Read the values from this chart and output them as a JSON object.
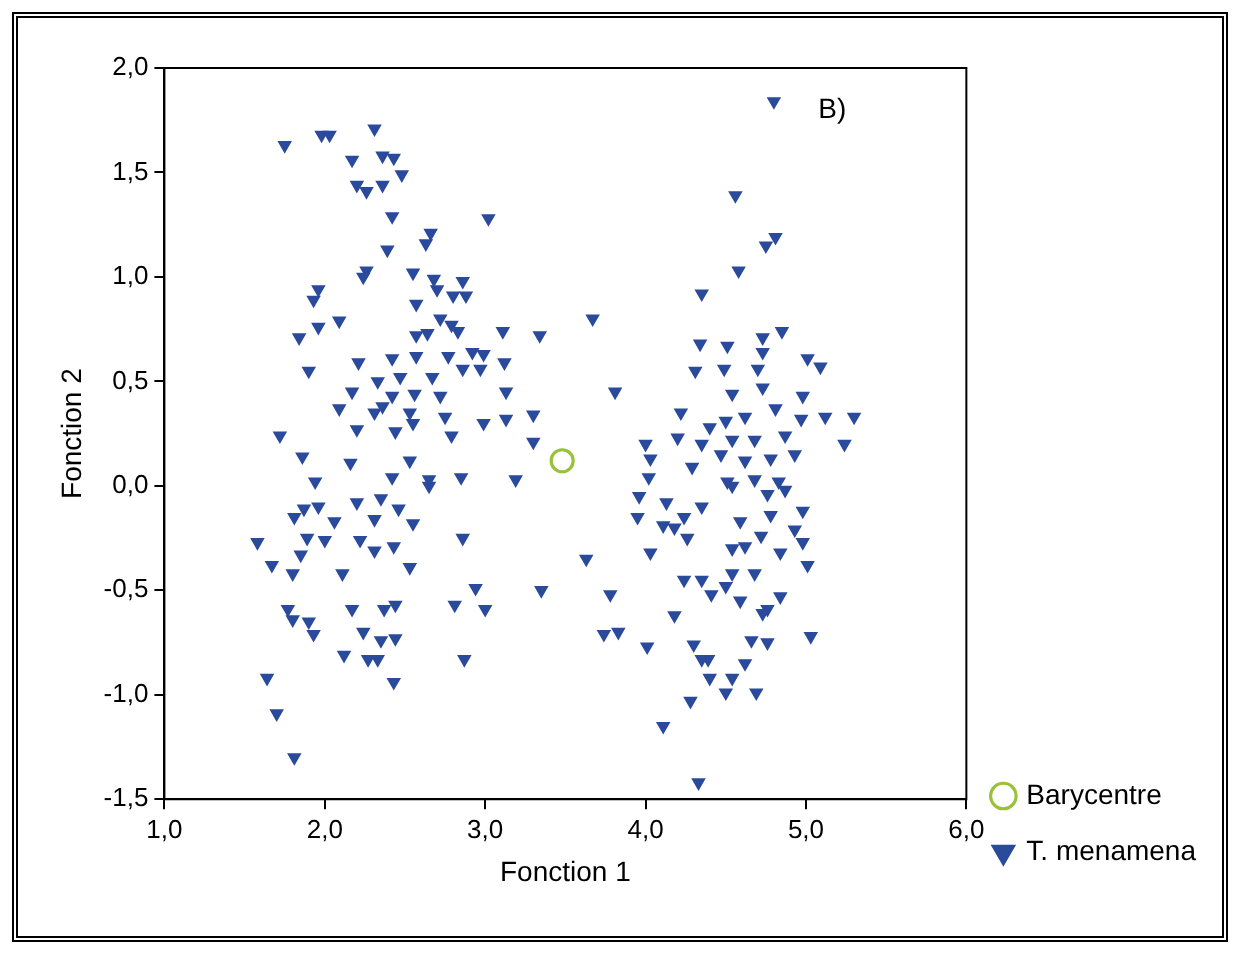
{
  "chart_data": {
    "type": "scatter",
    "xlabel": "Fonction 1",
    "ylabel": "Fonction 2",
    "annotations": [
      "B)"
    ],
    "xlim": [
      1,
      6
    ],
    "ylim": [
      -1.5,
      2
    ],
    "xticks": [
      {
        "value": 1,
        "label": "1,0"
      },
      {
        "value": 2,
        "label": "2,0"
      },
      {
        "value": 3,
        "label": "3,0"
      },
      {
        "value": 4,
        "label": "4,0"
      },
      {
        "value": 5,
        "label": "5,0"
      },
      {
        "value": 6,
        "label": "6,0"
      }
    ],
    "yticks": [
      {
        "value": -1.5,
        "label": "-1,5"
      },
      {
        "value": -1,
        "label": "-1,0"
      },
      {
        "value": -0.5,
        "label": "-0,5"
      },
      {
        "value": 0,
        "label": "0,0"
      },
      {
        "value": 0.5,
        "label": "0,5"
      },
      {
        "value": 1,
        "label": "1,0"
      },
      {
        "value": 1.5,
        "label": "1,5"
      },
      {
        "value": 2,
        "label": "2,0"
      }
    ],
    "grid": false,
    "legend": "bottom right",
    "series": [
      {
        "name": "Barycentre",
        "color": "#99c23a",
        "marker": "circle",
        "x": [
          3.48
        ],
        "values": [
          0.12
        ]
      },
      {
        "name": "T. menamena",
        "color": "#2a4a9c",
        "marker": "triangle",
        "x": [
          1.75,
          1.98,
          2.03,
          2.31,
          2.17,
          2.36,
          2.43,
          2.48,
          2.2,
          2.26,
          2.36,
          2.42,
          2.39,
          3.02,
          2.66,
          2.63,
          2.26,
          2.24,
          2.55,
          2.68,
          2.86,
          1.96,
          1.93,
          2.7,
          2.8,
          2.88,
          2.09,
          1.96,
          1.84,
          2.57,
          2.72,
          2.79,
          2.83,
          2.64,
          2.57,
          3.11,
          3.34,
          3.67,
          1.9,
          2.21,
          2.42,
          2.57,
          2.77,
          2.92,
          2.99,
          3.12,
          2.97,
          2.86,
          2.67,
          2.47,
          2.33,
          2.17,
          2.42,
          2.56,
          2.72,
          3.13,
          2.09,
          2.31,
          2.36,
          2.53,
          2.75,
          2.99,
          3.13,
          3.3,
          1.72,
          2.2,
          2.44,
          2.55,
          2.79,
          3.3,
          1.86,
          2.16,
          2.53,
          2.42,
          2.65,
          2.85,
          3.19,
          2.65,
          1.94,
          1.96,
          1.87,
          1.81,
          2.06,
          2.2,
          2.31,
          2.46,
          2.55,
          2.35,
          1.58,
          1.89,
          2.0,
          2.22,
          2.31,
          2.43,
          2.86,
          1.67,
          1.85,
          2.11,
          2.53,
          1.8,
          2.94,
          3.35,
          1.77,
          2.17,
          2.37,
          2.44,
          2.81,
          3.0,
          1.8,
          1.9,
          1.93,
          2.24,
          2.35,
          2.44,
          2.12,
          2.27,
          2.33,
          2.87,
          2.43,
          1.64,
          1.7,
          1.81,
          3.63,
          3.78,
          3.74,
          3.83,
          3.81,
          4.8,
          4.56,
          4.58,
          4.75,
          4.81,
          4.35,
          4.73,
          4.85,
          4.34,
          4.51,
          4.73,
          4.31,
          4.49,
          4.7,
          5.01,
          5.09,
          4.54,
          4.73,
          4.98,
          4.22,
          4.4,
          4.5,
          4.62,
          4.81,
          4.97,
          5.12,
          5.3,
          4.0,
          4.2,
          4.35,
          4.54,
          4.68,
          4.87,
          5.24,
          4.03,
          4.29,
          4.47,
          4.62,
          4.78,
          4.93,
          4.02,
          4.51,
          4.68,
          4.83,
          3.96,
          4.13,
          4.35,
          4.54,
          4.76,
          4.87,
          4.98,
          3.95,
          4.11,
          4.24,
          4.18,
          4.59,
          4.78,
          4.03,
          4.26,
          4.54,
          4.62,
          4.84,
          4.98,
          4.72,
          4.93,
          4.54,
          4.68,
          5.01,
          4.24,
          4.35,
          4.41,
          4.5,
          4.59,
          4.76,
          4.84,
          4.73,
          4.01,
          4.18,
          4.3,
          4.35,
          4.39,
          4.66,
          4.76,
          5.03,
          4.4,
          4.54,
          4.62,
          4.5,
          4.69,
          4.28,
          4.11,
          4.33
        ],
        "values": [
          1.63,
          1.68,
          1.68,
          1.71,
          1.56,
          1.58,
          1.57,
          1.49,
          1.44,
          1.41,
          1.44,
          1.29,
          1.13,
          1.28,
          1.21,
          1.16,
          1.03,
          1.0,
          1.02,
          0.99,
          0.98,
          0.94,
          0.89,
          0.94,
          0.91,
          0.91,
          0.79,
          0.76,
          0.71,
          0.87,
          0.8,
          0.77,
          0.74,
          0.73,
          0.72,
          0.74,
          0.72,
          0.8,
          0.55,
          0.59,
          0.61,
          0.62,
          0.62,
          0.64,
          0.63,
          0.59,
          0.56,
          0.56,
          0.52,
          0.52,
          0.5,
          0.45,
          0.43,
          0.44,
          0.43,
          0.45,
          0.37,
          0.35,
          0.38,
          0.35,
          0.33,
          0.3,
          0.32,
          0.34,
          0.24,
          0.27,
          0.26,
          0.3,
          0.24,
          0.21,
          0.14,
          0.11,
          0.12,
          0.04,
          0.03,
          0.04,
          0.03,
          0.0,
          0.02,
          -0.1,
          -0.11,
          -0.15,
          -0.17,
          -0.08,
          -0.16,
          -0.11,
          -0.18,
          -0.06,
          -0.27,
          -0.25,
          -0.26,
          -0.26,
          -0.31,
          -0.29,
          -0.25,
          -0.38,
          -0.33,
          -0.42,
          -0.39,
          -0.42,
          -0.49,
          -0.5,
          -0.59,
          -0.59,
          -0.59,
          -0.57,
          -0.57,
          -0.59,
          -0.64,
          -0.65,
          -0.71,
          -0.7,
          -0.74,
          -0.73,
          -0.81,
          -0.83,
          -0.83,
          -0.83,
          -0.94,
          -0.92,
          -1.09,
          -1.3,
          -0.35,
          -0.52,
          -0.71,
          -0.7,
          0.45,
          1.84,
          1.39,
          1.03,
          1.15,
          1.19,
          0.92,
          0.71,
          0.74,
          0.68,
          0.67,
          0.64,
          0.55,
          0.56,
          0.56,
          0.61,
          0.57,
          0.44,
          0.47,
          0.43,
          0.35,
          0.28,
          0.31,
          0.33,
          0.37,
          0.32,
          0.33,
          0.33,
          0.2,
          0.23,
          0.2,
          0.22,
          0.22,
          0.24,
          0.2,
          0.13,
          0.09,
          0.15,
          0.12,
          0.13,
          0.15,
          0.04,
          0.02,
          0.03,
          0.02,
          -0.05,
          -0.08,
          -0.1,
          0.0,
          -0.04,
          -0.02,
          -0.12,
          -0.15,
          -0.19,
          -0.15,
          -0.2,
          -0.17,
          -0.14,
          -0.32,
          -0.25,
          -0.3,
          -0.29,
          -0.32,
          -0.27,
          -0.24,
          -0.21,
          -0.42,
          -0.42,
          -0.38,
          -0.45,
          -0.45,
          -0.52,
          -0.48,
          -0.55,
          -0.59,
          -0.53,
          -0.61,
          -0.77,
          -0.62,
          -0.76,
          -0.83,
          -0.83,
          -0.74,
          -0.75,
          -0.72,
          -0.92,
          -0.92,
          -0.85,
          -0.99,
          -0.99,
          -1.03,
          -1.15,
          -1.42
        ]
      }
    ]
  }
}
